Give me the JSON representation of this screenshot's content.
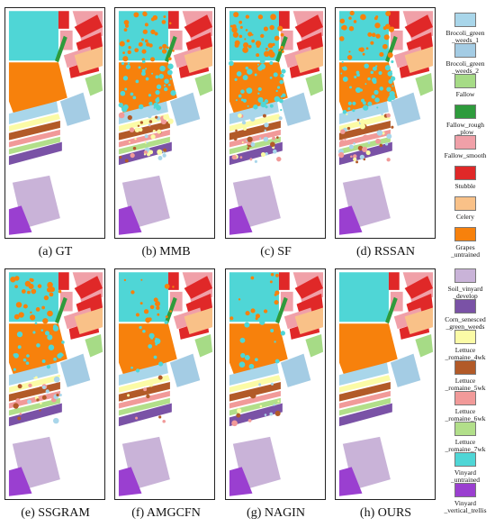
{
  "panels": [
    {
      "label": "(a) GT",
      "noise": 0
    },
    {
      "label": "(b) MMB",
      "noise": 3
    },
    {
      "label": "(c) SF",
      "noise": 3
    },
    {
      "label": "(d) RSSAN",
      "noise": 3
    },
    {
      "label": "(e) SSGRAM",
      "noise": 2
    },
    {
      "label": "(f) AMGCFN",
      "noise": 1
    },
    {
      "label": "(g) NAGIN",
      "noise": 1
    },
    {
      "label": "(h) OURS",
      "noise": 0
    }
  ],
  "legend": [
    {
      "name": "Brocoli_green\n_weeds_1",
      "color": "#a9d6ea"
    },
    {
      "name": "Brocoli_green\n_weeds_2",
      "color": "#a4cce4"
    },
    {
      "name": "Fallow",
      "color": "#a6db86"
    },
    {
      "name": "Fallow_rough\n_plow",
      "color": "#2e9b3c"
    },
    {
      "name": "Fallow_smooth",
      "color": "#f0a0a8"
    },
    {
      "name": "Stubble",
      "color": "#e02828"
    },
    {
      "name": "Celery",
      "color": "#f9c188"
    },
    {
      "name": "Grapes\n_untrained",
      "color": "#f7810c"
    },
    {
      "name": "Soil_vinyard\n_develop",
      "color": "#c9b3d8"
    },
    {
      "name": "Corn_senesced\n_green_weeds",
      "color": "#7a52a6"
    },
    {
      "name": "Lettuce\n_romaine_4wk",
      "color": "#fbfba6"
    },
    {
      "name": "Lettuce\n_romaine_5wk",
      "color": "#b25a28"
    },
    {
      "name": "Lettuce\n_romaine_6wk",
      "color": "#f19a99"
    },
    {
      "name": "Lettuce\n_romaine_7wk",
      "color": "#b2df8a"
    },
    {
      "name": "Vinyard\n_untrained",
      "color": "#4fd6d6"
    },
    {
      "name": "Vinyard\n_vertical_trellis",
      "color": "#9a3fd0"
    }
  ]
}
